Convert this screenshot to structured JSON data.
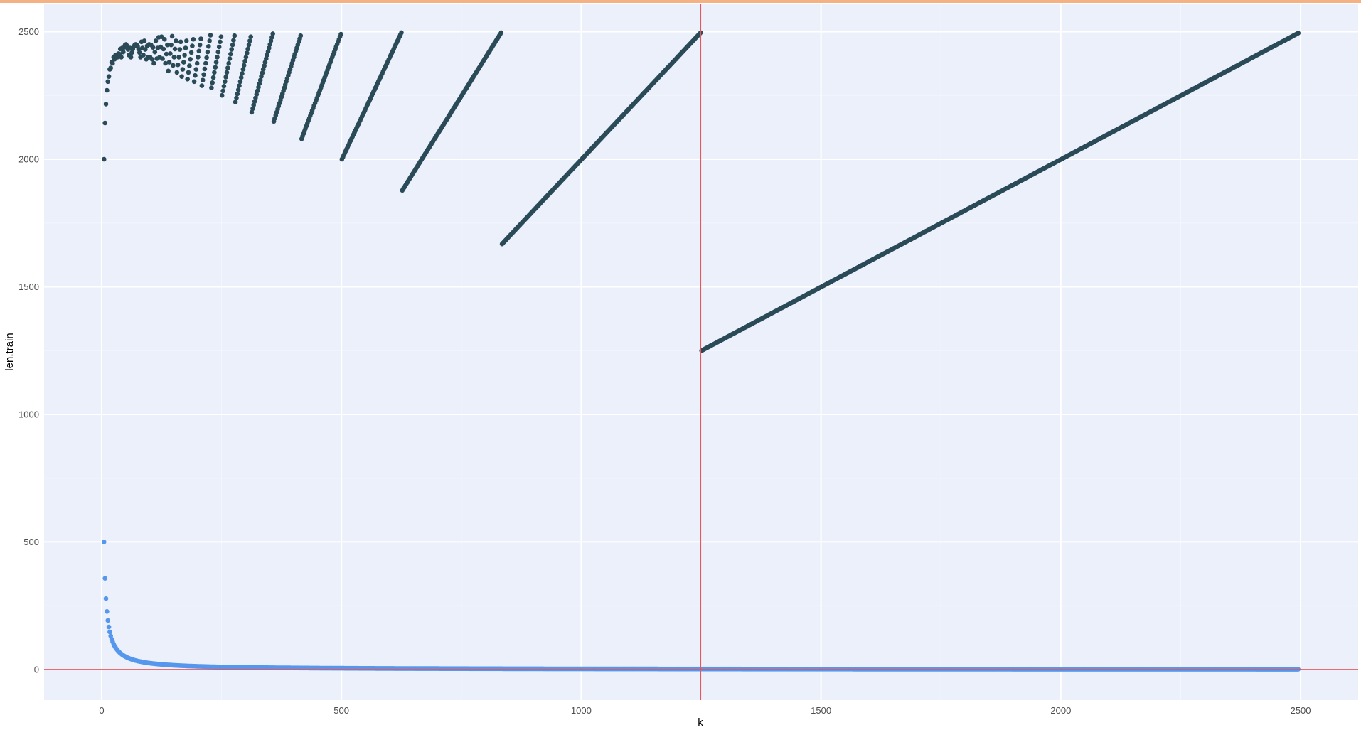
{
  "colors": {
    "panel_background": "#ebf0fb",
    "grid_major": "#ffffff",
    "grid_minor": "#f3f6fd",
    "top_strip": "#f4b183",
    "ref_line": "#e8555a",
    "series_upper": "#2a4a57",
    "series_lower": "#5597ed"
  },
  "chart_data": {
    "type": "scatter",
    "title": "",
    "xlabel": "k",
    "ylabel": "len.train",
    "xlim": [
      -120,
      2620
    ],
    "ylim": [
      -120,
      2610
    ],
    "x_ticks": [
      {
        "value": 0,
        "label": "0"
      },
      {
        "value": 500,
        "label": "500"
      },
      {
        "value": 1000,
        "label": "1000"
      },
      {
        "value": 1500,
        "label": "1500"
      },
      {
        "value": 2000,
        "label": "2000"
      },
      {
        "value": 2500,
        "label": "2500"
      }
    ],
    "y_ticks": [
      {
        "value": 0,
        "label": "0"
      },
      {
        "value": 500,
        "label": "500"
      },
      {
        "value": 1000,
        "label": "1000"
      },
      {
        "value": 1500,
        "label": "1500"
      },
      {
        "value": 2000,
        "label": "2000"
      },
      {
        "value": 2500,
        "label": "2500"
      }
    ],
    "grid": true,
    "legend": "none",
    "k_range": [
      5,
      2495
    ],
    "reference_lines": {
      "vertical_x": 1249,
      "horizontal_y": 0
    },
    "series": [
      {
        "role": "upper",
        "values_description": "train length grows with k within each step; about 2000 at k=5, near 2490 at block ends"
      },
      {
        "role": "lower",
        "values_description": "decreasing curve; about 500 at k=5, near 0 for large k"
      }
    ]
  }
}
